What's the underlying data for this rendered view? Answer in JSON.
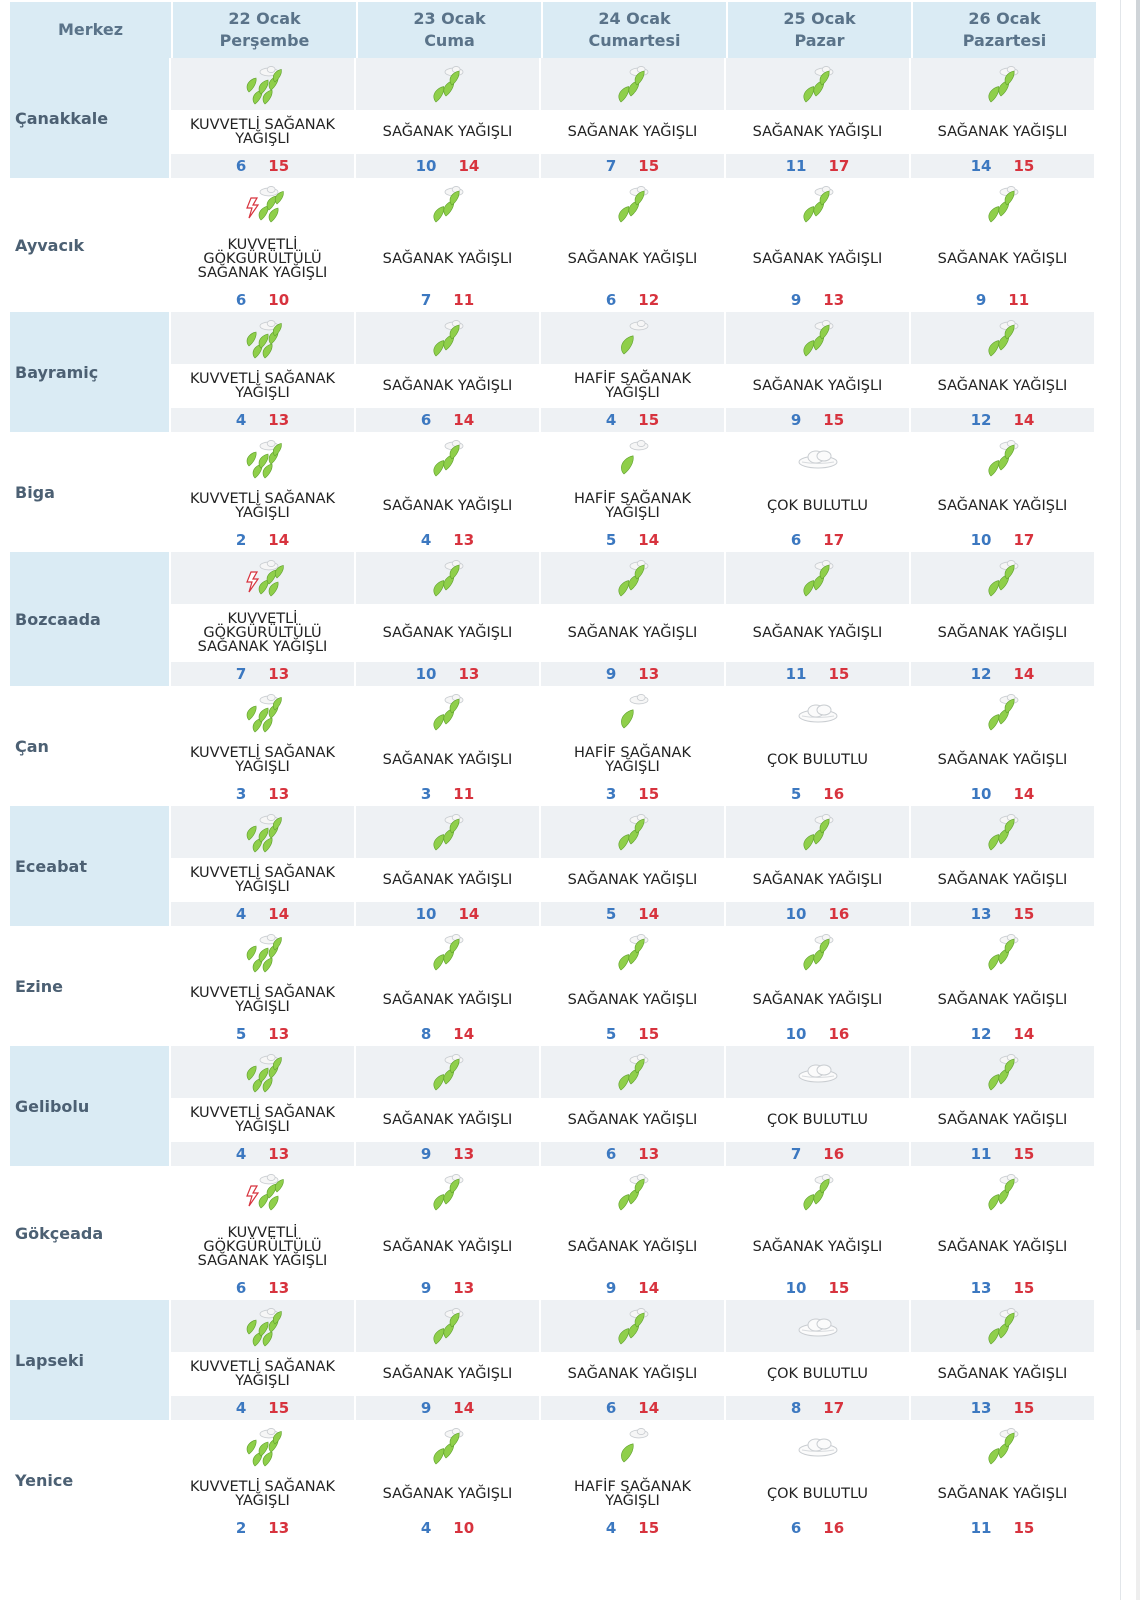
{
  "header": {
    "merkez_label": "Merkez",
    "days": [
      {
        "date": "22 Ocak",
        "weekday": "Perşembe"
      },
      {
        "date": "23 Ocak",
        "weekday": "Cuma"
      },
      {
        "date": "24 Ocak",
        "weekday": "Cumartesi"
      },
      {
        "date": "25 Ocak",
        "weekday": "Pazar"
      },
      {
        "date": "26 Ocak",
        "weekday": "Pazartesi"
      }
    ]
  },
  "rows": [
    {
      "city": "Çanakkale",
      "days": [
        {
          "icon": "heavy-rain-icon",
          "desc": "KUVVETLİ SAĞANAK YAĞIŞLI",
          "min": "6",
          "max": "15"
        },
        {
          "icon": "rain-showers-icon",
          "desc": "SAĞANAK YAĞIŞLI",
          "min": "10",
          "max": "14"
        },
        {
          "icon": "rain-showers-icon",
          "desc": "SAĞANAK YAĞIŞLI",
          "min": "7",
          "max": "15"
        },
        {
          "icon": "rain-showers-icon",
          "desc": "SAĞANAK YAĞIŞLI",
          "min": "11",
          "max": "17"
        },
        {
          "icon": "rain-showers-icon",
          "desc": "SAĞANAK YAĞIŞLI",
          "min": "14",
          "max": "15"
        }
      ]
    },
    {
      "city": "Ayvacık",
      "days": [
        {
          "icon": "thunder-rain-icon",
          "desc": "KUVVETLİ GÖKGÜRÜLTÜLÜ SAĞANAK YAĞIŞLI",
          "min": "6",
          "max": "10"
        },
        {
          "icon": "rain-showers-icon",
          "desc": "SAĞANAK YAĞIŞLI",
          "min": "7",
          "max": "11"
        },
        {
          "icon": "rain-showers-icon",
          "desc": "SAĞANAK YAĞIŞLI",
          "min": "6",
          "max": "12"
        },
        {
          "icon": "rain-showers-icon",
          "desc": "SAĞANAK YAĞIŞLI",
          "min": "9",
          "max": "13"
        },
        {
          "icon": "rain-showers-icon",
          "desc": "SAĞANAK YAĞIŞLI",
          "min": "9",
          "max": "11"
        }
      ]
    },
    {
      "city": "Bayramiç",
      "days": [
        {
          "icon": "heavy-rain-icon",
          "desc": "KUVVETLİ SAĞANAK YAĞIŞLI",
          "min": "4",
          "max": "13"
        },
        {
          "icon": "rain-showers-icon",
          "desc": "SAĞANAK YAĞIŞLI",
          "min": "6",
          "max": "14"
        },
        {
          "icon": "light-rain-icon",
          "desc": "HAFİF SAĞANAK YAĞIŞLI",
          "min": "4",
          "max": "15"
        },
        {
          "icon": "rain-showers-icon",
          "desc": "SAĞANAK YAĞIŞLI",
          "min": "9",
          "max": "15"
        },
        {
          "icon": "rain-showers-icon",
          "desc": "SAĞANAK YAĞIŞLI",
          "min": "12",
          "max": "14"
        }
      ]
    },
    {
      "city": "Biga",
      "days": [
        {
          "icon": "heavy-rain-icon",
          "desc": "KUVVETLİ SAĞANAK YAĞIŞLI",
          "min": "2",
          "max": "14"
        },
        {
          "icon": "rain-showers-icon",
          "desc": "SAĞANAK YAĞIŞLI",
          "min": "4",
          "max": "13"
        },
        {
          "icon": "light-rain-icon",
          "desc": "HAFİF SAĞANAK YAĞIŞLI",
          "min": "5",
          "max": "14"
        },
        {
          "icon": "cloudy-icon",
          "desc": "ÇOK BULUTLU",
          "min": "6",
          "max": "17"
        },
        {
          "icon": "rain-showers-icon",
          "desc": "SAĞANAK YAĞIŞLI",
          "min": "10",
          "max": "17"
        }
      ]
    },
    {
      "city": "Bozcaada",
      "days": [
        {
          "icon": "thunder-rain-icon",
          "desc": "KUVVETLİ GÖKGÜRÜLTÜLÜ SAĞANAK YAĞIŞLI",
          "min": "7",
          "max": "13"
        },
        {
          "icon": "rain-showers-icon",
          "desc": "SAĞANAK YAĞIŞLI",
          "min": "10",
          "max": "13"
        },
        {
          "icon": "rain-showers-icon",
          "desc": "SAĞANAK YAĞIŞLI",
          "min": "9",
          "max": "13"
        },
        {
          "icon": "rain-showers-icon",
          "desc": "SAĞANAK YAĞIŞLI",
          "min": "11",
          "max": "15"
        },
        {
          "icon": "rain-showers-icon",
          "desc": "SAĞANAK YAĞIŞLI",
          "min": "12",
          "max": "14"
        }
      ]
    },
    {
      "city": "Çan",
      "days": [
        {
          "icon": "heavy-rain-icon",
          "desc": "KUVVETLİ SAĞANAK YAĞIŞLI",
          "min": "3",
          "max": "13"
        },
        {
          "icon": "rain-showers-icon",
          "desc": "SAĞANAK YAĞIŞLI",
          "min": "3",
          "max": "11"
        },
        {
          "icon": "light-rain-icon",
          "desc": "HAFİF SAĞANAK YAĞIŞLI",
          "min": "3",
          "max": "15"
        },
        {
          "icon": "cloudy-icon",
          "desc": "ÇOK BULUTLU",
          "min": "5",
          "max": "16"
        },
        {
          "icon": "rain-showers-icon",
          "desc": "SAĞANAK YAĞIŞLI",
          "min": "10",
          "max": "14"
        }
      ]
    },
    {
      "city": "Eceabat",
      "days": [
        {
          "icon": "heavy-rain-icon",
          "desc": "KUVVETLİ SAĞANAK YAĞIŞLI",
          "min": "4",
          "max": "14"
        },
        {
          "icon": "rain-showers-icon",
          "desc": "SAĞANAK YAĞIŞLI",
          "min": "10",
          "max": "14"
        },
        {
          "icon": "rain-showers-icon",
          "desc": "SAĞANAK YAĞIŞLI",
          "min": "5",
          "max": "14"
        },
        {
          "icon": "rain-showers-icon",
          "desc": "SAĞANAK YAĞIŞLI",
          "min": "10",
          "max": "16"
        },
        {
          "icon": "rain-showers-icon",
          "desc": "SAĞANAK YAĞIŞLI",
          "min": "13",
          "max": "15"
        }
      ]
    },
    {
      "city": "Ezine",
      "days": [
        {
          "icon": "heavy-rain-icon",
          "desc": "KUVVETLİ SAĞANAK YAĞIŞLI",
          "min": "5",
          "max": "13"
        },
        {
          "icon": "rain-showers-icon",
          "desc": "SAĞANAK YAĞIŞLI",
          "min": "8",
          "max": "14"
        },
        {
          "icon": "rain-showers-icon",
          "desc": "SAĞANAK YAĞIŞLI",
          "min": "5",
          "max": "15"
        },
        {
          "icon": "rain-showers-icon",
          "desc": "SAĞANAK YAĞIŞLI",
          "min": "10",
          "max": "16"
        },
        {
          "icon": "rain-showers-icon",
          "desc": "SAĞANAK YAĞIŞLI",
          "min": "12",
          "max": "14"
        }
      ]
    },
    {
      "city": "Gelibolu",
      "days": [
        {
          "icon": "heavy-rain-icon",
          "desc": "KUVVETLİ SAĞANAK YAĞIŞLI",
          "min": "4",
          "max": "13"
        },
        {
          "icon": "rain-showers-icon",
          "desc": "SAĞANAK YAĞIŞLI",
          "min": "9",
          "max": "13"
        },
        {
          "icon": "rain-showers-icon",
          "desc": "SAĞANAK YAĞIŞLI",
          "min": "6",
          "max": "13"
        },
        {
          "icon": "cloudy-icon",
          "desc": "ÇOK BULUTLU",
          "min": "7",
          "max": "16"
        },
        {
          "icon": "rain-showers-icon",
          "desc": "SAĞANAK YAĞIŞLI",
          "min": "11",
          "max": "15"
        }
      ]
    },
    {
      "city": "Gökçeada",
      "days": [
        {
          "icon": "thunder-rain-icon",
          "desc": "KUVVETLİ GÖKGÜRÜLTÜLÜ SAĞANAK YAĞIŞLI",
          "min": "6",
          "max": "13"
        },
        {
          "icon": "rain-showers-icon",
          "desc": "SAĞANAK YAĞIŞLI",
          "min": "9",
          "max": "13"
        },
        {
          "icon": "rain-showers-icon",
          "desc": "SAĞANAK YAĞIŞLI",
          "min": "9",
          "max": "14"
        },
        {
          "icon": "rain-showers-icon",
          "desc": "SAĞANAK YAĞIŞLI",
          "min": "10",
          "max": "15"
        },
        {
          "icon": "rain-showers-icon",
          "desc": "SAĞANAK YAĞIŞLI",
          "min": "13",
          "max": "15"
        }
      ]
    },
    {
      "city": "Lapseki",
      "days": [
        {
          "icon": "heavy-rain-icon",
          "desc": "KUVVETLİ SAĞANAK YAĞIŞLI",
          "min": "4",
          "max": "15"
        },
        {
          "icon": "rain-showers-icon",
          "desc": "SAĞANAK YAĞIŞLI",
          "min": "9",
          "max": "14"
        },
        {
          "icon": "rain-showers-icon",
          "desc": "SAĞANAK YAĞIŞLI",
          "min": "6",
          "max": "14"
        },
        {
          "icon": "cloudy-icon",
          "desc": "ÇOK BULUTLU",
          "min": "8",
          "max": "17"
        },
        {
          "icon": "rain-showers-icon",
          "desc": "SAĞANAK YAĞIŞLI",
          "min": "13",
          "max": "15"
        }
      ]
    },
    {
      "city": "Yenice",
      "days": [
        {
          "icon": "heavy-rain-icon",
          "desc": "KUVVETLİ SAĞANAK YAĞIŞLI",
          "min": "2",
          "max": "13"
        },
        {
          "icon": "rain-showers-icon",
          "desc": "SAĞANAK YAĞIŞLI",
          "min": "4",
          "max": "10"
        },
        {
          "icon": "light-rain-icon",
          "desc": "HAFİF SAĞANAK YAĞIŞLI",
          "min": "4",
          "max": "15"
        },
        {
          "icon": "cloudy-icon",
          "desc": "ÇOK BULUTLU",
          "min": "6",
          "max": "16"
        },
        {
          "icon": "rain-showers-icon",
          "desc": "SAĞANAK YAĞIŞLI",
          "min": "11",
          "max": "15"
        }
      ]
    }
  ],
  "colors": {
    "header_bg": "#daebf4",
    "alt_bg": "#eef1f4",
    "min_temp": "#3c78c0",
    "max_temp": "#d7333e",
    "drop_green": "#8fcf4a"
  }
}
